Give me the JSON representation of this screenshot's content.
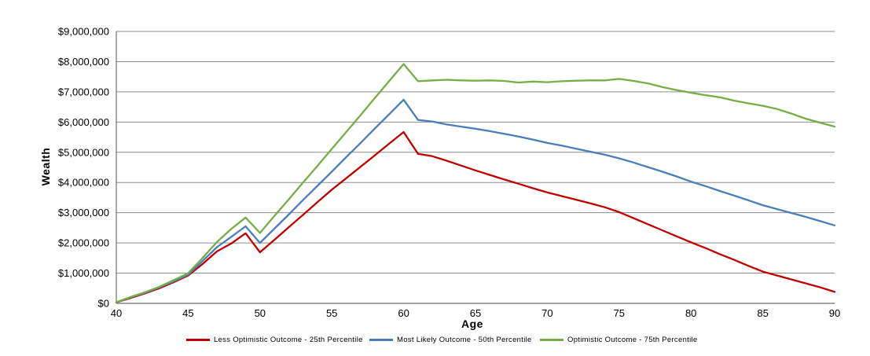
{
  "chart_data": {
    "type": "line",
    "xlabel": "Age",
    "ylabel": "Wealth",
    "xlim": [
      40,
      90
    ],
    "ylim": [
      0,
      9000000
    ],
    "grid": "horizontal",
    "legend_position": "bottom",
    "gridline_color": "#8C8C8C",
    "axis_color": "#6E6E6E",
    "xtick_values": [
      40,
      45,
      50,
      55,
      60,
      65,
      70,
      75,
      80,
      85,
      90
    ],
    "xtick_labels": [
      "40",
      "45",
      "50",
      "55",
      "60",
      "65",
      "70",
      "75",
      "80",
      "85",
      "90"
    ],
    "ytick_values": [
      0,
      1000000,
      2000000,
      3000000,
      4000000,
      5000000,
      6000000,
      7000000,
      8000000,
      9000000
    ],
    "ytick_labels": [
      "$0",
      "$1,000,000",
      "$2,000,000",
      "$3,000,000",
      "$4,000,000",
      "$5,000,000",
      "$6,000,000",
      "$7,000,000",
      "$8,000,000",
      "$9,000,000"
    ],
    "x": [
      40,
      41,
      42,
      43,
      44,
      45,
      46,
      47,
      48,
      49,
      50,
      51,
      52,
      53,
      54,
      55,
      56,
      57,
      58,
      59,
      60,
      61,
      62,
      63,
      64,
      65,
      66,
      67,
      68,
      69,
      70,
      71,
      72,
      73,
      74,
      75,
      76,
      77,
      78,
      79,
      80,
      81,
      82,
      83,
      84,
      85,
      86,
      87,
      88,
      89,
      90
    ],
    "series": [
      {
        "name": "Less Optimistic Outcome - 25th Percentile",
        "color": "#C00000",
        "values": [
          30000,
          180000,
          330000,
          500000,
          700000,
          920000,
          1300000,
          1720000,
          1980000,
          2320000,
          1690000,
          2100000,
          2520000,
          2930000,
          3350000,
          3760000,
          4140000,
          4520000,
          4900000,
          5290000,
          5670000,
          4950000,
          4870000,
          4720000,
          4560000,
          4400000,
          4250000,
          4100000,
          3960000,
          3810000,
          3670000,
          3550000,
          3430000,
          3310000,
          3180000,
          3020000,
          2820000,
          2620000,
          2420000,
          2220000,
          2020000,
          1830000,
          1630000,
          1440000,
          1240000,
          1050000,
          920000,
          790000,
          660000,
          530000,
          380000
        ]
      },
      {
        "name": "Most Likely Outcome - 50th Percentile",
        "color": "#4A7EBB",
        "values": [
          30000,
          200000,
          350000,
          530000,
          730000,
          950000,
          1400000,
          1860000,
          2200000,
          2550000,
          2000000,
          2470000,
          2940000,
          3420000,
          3890000,
          4360000,
          4840000,
          5310000,
          5790000,
          6260000,
          6740000,
          6070000,
          6020000,
          5920000,
          5850000,
          5780000,
          5700000,
          5610000,
          5520000,
          5420000,
          5310000,
          5220000,
          5120000,
          5020000,
          4920000,
          4800000,
          4660000,
          4510000,
          4360000,
          4200000,
          4030000,
          3880000,
          3720000,
          3570000,
          3410000,
          3250000,
          3120000,
          2990000,
          2860000,
          2720000,
          2580000
        ]
      },
      {
        "name": "Optimistic Outcome - 75th Percentile",
        "color": "#76AD46",
        "values": [
          40000,
          210000,
          370000,
          550000,
          770000,
          1000000,
          1500000,
          2030000,
          2460000,
          2840000,
          2330000,
          2890000,
          3440000,
          4000000,
          4550000,
          5110000,
          5670000,
          6230000,
          6800000,
          7360000,
          7920000,
          7350000,
          7380000,
          7400000,
          7380000,
          7370000,
          7380000,
          7360000,
          7310000,
          7340000,
          7320000,
          7350000,
          7370000,
          7380000,
          7380000,
          7430000,
          7360000,
          7280000,
          7160000,
          7060000,
          6970000,
          6890000,
          6820000,
          6710000,
          6620000,
          6540000,
          6430000,
          6280000,
          6110000,
          5980000,
          5850000
        ]
      }
    ]
  }
}
